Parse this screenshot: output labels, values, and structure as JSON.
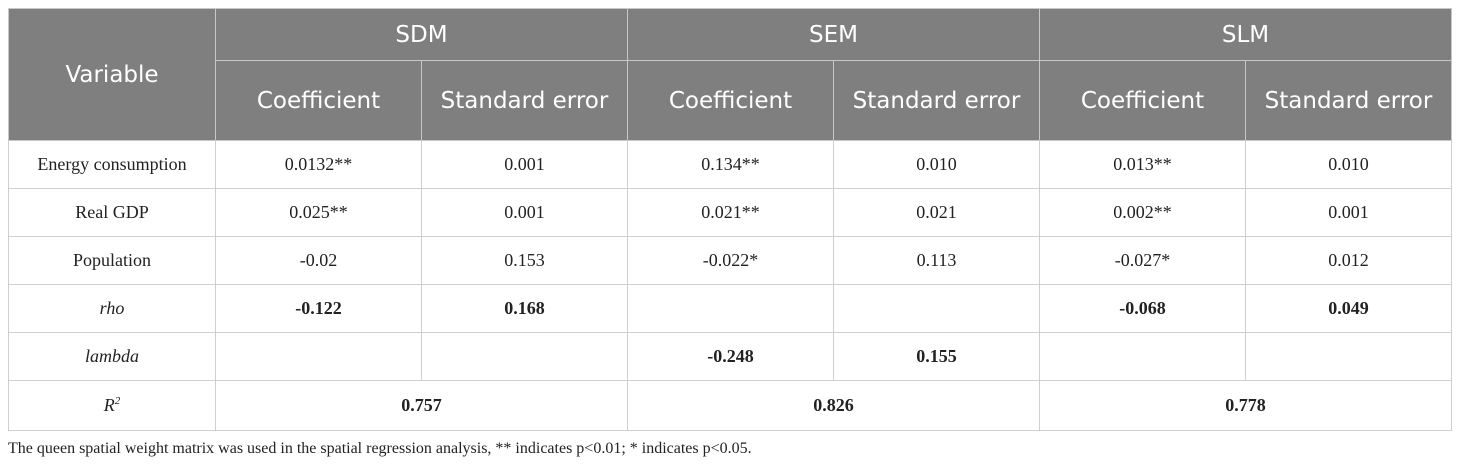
{
  "table": {
    "header": {
      "variable": "Variable",
      "models": [
        {
          "name": "SDM",
          "columns": [
            "Coefficient",
            "Standard error"
          ]
        },
        {
          "name": "SEM",
          "columns": [
            "Coefficient",
            "Standard error"
          ]
        },
        {
          "name": "SLM",
          "columns": [
            "Coefficient",
            "Standard error"
          ]
        }
      ]
    },
    "rows": [
      {
        "label": "Energy consumption",
        "style": "normal",
        "cells": [
          "0.0132**",
          "0.001",
          "0.134**",
          "0.010",
          "0.013**",
          "0.010"
        ]
      },
      {
        "label": "Real GDP",
        "style": "normal",
        "cells": [
          "0.025**",
          "0.001",
          "0.021**",
          "0.021",
          "0.002**",
          "0.001"
        ]
      },
      {
        "label": "Population",
        "style": "normal",
        "cells": [
          "-0.02",
          "0.153",
          "-0.022*",
          "0.113",
          "-0.027*",
          "0.012"
        ]
      },
      {
        "label": "rho",
        "style": "emphasis",
        "cells": [
          "-0.122",
          "0.168",
          null,
          null,
          "-0.068",
          "0.049"
        ]
      },
      {
        "label": "lambda",
        "style": "emphasis",
        "cells": [
          null,
          null,
          "-0.248",
          "0.155",
          null,
          null
        ]
      }
    ],
    "r_squared": {
      "label": "R",
      "superscript": "2",
      "values": [
        "0.757",
        "0.826",
        "0.778"
      ]
    }
  },
  "footnote": "The queen spatial weight matrix was used in the spatial regression analysis, ** indicates p<0.01; * indicates p<0.05."
}
